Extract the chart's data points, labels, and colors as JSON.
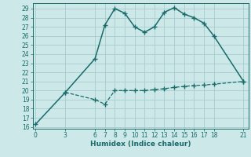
{
  "xlabel": "Humidex (Indice chaleur)",
  "bg_color": "#cce8e8",
  "grid_color": "#aacccc",
  "line_color": "#1a6b6b",
  "xticks": [
    0,
    3,
    6,
    7,
    8,
    9,
    10,
    11,
    12,
    13,
    14,
    15,
    16,
    17,
    18,
    21
  ],
  "yticks": [
    16,
    17,
    18,
    19,
    20,
    21,
    22,
    23,
    24,
    25,
    26,
    27,
    28,
    29
  ],
  "xlim": [
    -0.3,
    21.5
  ],
  "ylim": [
    15.8,
    29.6
  ],
  "line1_x": [
    0,
    3,
    6,
    7,
    8,
    9,
    10,
    11,
    12,
    13,
    14,
    15,
    16,
    17,
    18,
    21
  ],
  "line1_y": [
    16.3,
    19.8,
    23.5,
    27.2,
    29.0,
    28.5,
    27.0,
    26.4,
    27.0,
    28.6,
    29.1,
    28.4,
    28.0,
    27.4,
    26.0,
    21.0
  ],
  "line2_x": [
    3,
    6,
    7,
    8,
    9,
    10,
    11,
    12,
    13,
    14,
    15,
    16,
    17,
    18,
    21
  ],
  "line2_y": [
    19.8,
    19.0,
    18.5,
    20.0,
    20.0,
    20.0,
    20.0,
    20.1,
    20.2,
    20.35,
    20.45,
    20.55,
    20.6,
    20.7,
    21.0
  ],
  "marker_size": 5,
  "tick_fontsize": 5.5,
  "xlabel_fontsize": 6.5
}
